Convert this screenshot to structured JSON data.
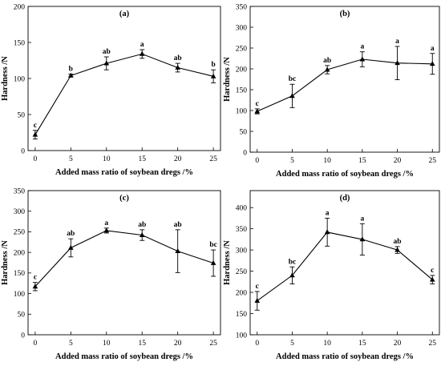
{
  "chart_data": [
    {
      "type": "line",
      "label": "(a)",
      "xlabel": "Added mass ratio of soybean dregs /%",
      "ylabel": "Hardness /N",
      "x": [
        0,
        5,
        10,
        15,
        20,
        25
      ],
      "values": [
        22,
        104,
        121,
        134,
        115,
        103
      ],
      "errors": [
        6,
        2,
        9,
        6,
        6,
        9
      ],
      "letters": [
        "c",
        "b",
        "ab",
        "a",
        "ab",
        "b"
      ],
      "xticks": [
        0,
        5,
        10,
        15,
        20,
        25
      ],
      "yticks": [
        0,
        50,
        100,
        150,
        200
      ],
      "ylim": [
        0,
        200
      ],
      "xlim": [
        -1,
        26
      ]
    },
    {
      "type": "line",
      "label": "(b)",
      "xlabel": "Added mass ratio of soybean dregs /%",
      "ylabel": "Hardness /N",
      "x": [
        0,
        5,
        10,
        15,
        20,
        25
      ],
      "values": [
        98,
        135,
        198,
        223,
        214,
        212
      ],
      "errors": [
        6,
        28,
        10,
        18,
        40,
        25
      ],
      "letters": [
        "c",
        "bc",
        "ab",
        "a",
        "a",
        "a"
      ],
      "xticks": [
        0,
        5,
        10,
        15,
        20,
        25
      ],
      "yticks": [
        0,
        50,
        100,
        150,
        200,
        250,
        300,
        350
      ],
      "ylim": [
        0,
        350
      ],
      "xlim": [
        -1,
        26
      ]
    },
    {
      "type": "line",
      "label": "(c)",
      "xlabel": "Added mass ratio of soybean dregs /%",
      "ylabel": "Hardness /N",
      "x": [
        0,
        5,
        10,
        15,
        20,
        25
      ],
      "values": [
        117,
        211,
        253,
        242,
        203,
        174
      ],
      "errors": [
        10,
        22,
        6,
        13,
        52,
        32
      ],
      "letters": [
        "c",
        "ab",
        "a",
        "ab",
        "ab",
        "bc"
      ],
      "xticks": [
        0,
        5,
        10,
        15,
        20,
        25
      ],
      "yticks": [
        0,
        50,
        100,
        150,
        200,
        250,
        300,
        350
      ],
      "ylim": [
        0,
        350
      ],
      "xlim": [
        -1,
        26
      ]
    },
    {
      "type": "line",
      "label": "(d)",
      "xlabel": "Added mass ratio of soybean dregs /%",
      "ylabel": "Hardness /N",
      "x": [
        0,
        5,
        10,
        15,
        20,
        25
      ],
      "values": [
        180,
        240,
        342,
        325,
        300,
        230
      ],
      "errors": [
        22,
        20,
        33,
        37,
        8,
        10
      ],
      "letters": [
        "c",
        "bc",
        "a",
        "a",
        "ab",
        "c"
      ],
      "xticks": [
        0,
        5,
        10,
        15,
        20,
        25
      ],
      "yticks": [
        100,
        150,
        200,
        250,
        300,
        350,
        400
      ],
      "ylim": [
        100,
        440
      ],
      "xlim": [
        -1,
        26
      ]
    }
  ]
}
